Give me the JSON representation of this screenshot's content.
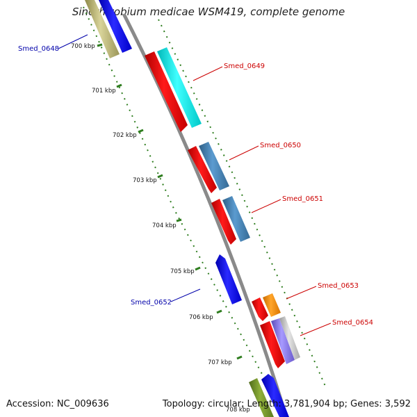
{
  "title": "Sinorhizobium medicae WSM419, complete genome",
  "accession": "Accession: NC_009636",
  "summary": "Topology: circular; Length: 3,781,904 bp; Genes: 3,592",
  "ticks": [
    "700 kbp",
    "701 kbp",
    "702 kbp",
    "703 kbp",
    "704 kbp",
    "705 kbp",
    "706 kbp",
    "707 kbp",
    "708 kbp"
  ],
  "colors": {
    "forward_label": "#cc0000",
    "reverse_label": "#0000aa",
    "backbone": "#888888",
    "tick": "#2e7d1e"
  },
  "features": [
    {
      "name": "Smed_0648",
      "color": "#0000ee"
    },
    {
      "name": "Smed_0649",
      "color": "#00eeee"
    },
    {
      "name": "Smed_0650",
      "color": "#4682b4"
    },
    {
      "name": "Smed_0651",
      "color": "#4682b4"
    },
    {
      "name": "Smed_0652",
      "color": "#0000ee"
    },
    {
      "name": "Smed_0653",
      "color": "#ff8c00"
    },
    {
      "name": "Smed_0654",
      "color": "#8470ff"
    }
  ]
}
